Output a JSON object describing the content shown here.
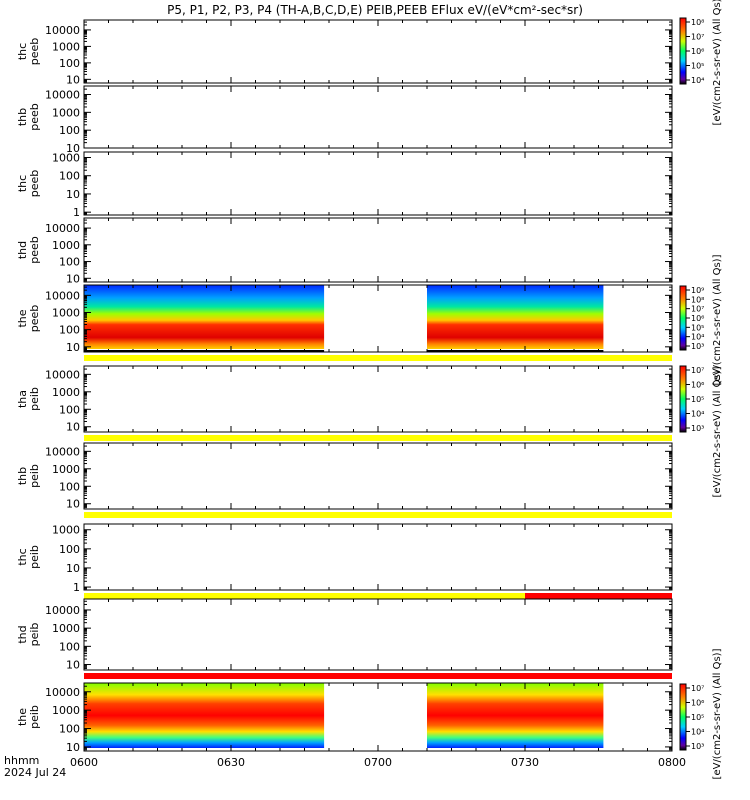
{
  "title": "P5, P1, P2, P3, P4 (TH-A,B,C,D,E) PEIB,PEEB EFlux eV/(eV*cm²-sec*sr)",
  "footer": {
    "time_label": "hhmm",
    "date_label": "2024 Jul 24"
  },
  "colorbars": [
    {
      "label": "[eV/(cm2-s-sr-eV) (All Qs)]",
      "ticks": [
        "10⁸",
        "10⁷",
        "10⁶",
        "10⁵",
        "10⁴"
      ]
    },
    {
      "label": "[eV/(cm2-s-sr-eV) (All Qs)]",
      "ticks": [
        "10⁹",
        "10⁸",
        "10⁷",
        "10⁶",
        "10⁵",
        "10⁴",
        "10³"
      ]
    },
    {
      "label": "[eV/(cm2-s-sr-eV) (All Qs)]",
      "ticks": [
        "10⁷",
        "10⁶",
        "10⁵",
        "10⁴",
        "10³"
      ]
    },
    {
      "label": "[eV/(cm2-s-sr-eV) (All Qs)]",
      "ticks": [
        "10⁷",
        "10⁶",
        "10⁵",
        "10⁴",
        "10³"
      ]
    }
  ],
  "colors": {
    "flag_yellow": "#ffff00",
    "flag_red": "#ff0000"
  },
  "chart_data": {
    "type": "heatmap",
    "x_ticks": [
      "0600",
      "0630",
      "0700",
      "0730",
      "0800"
    ],
    "x_range_min": [
      0,
      120
    ],
    "panels": [
      {
        "probe": "thc",
        "product": "peeb",
        "yticks": [
          "10000",
          "1000",
          "100",
          "10"
        ],
        "ylim": [
          6,
          40000
        ],
        "flag": null,
        "data_segments": []
      },
      {
        "probe": "thb",
        "product": "peeb",
        "yticks": [
          "10000",
          "1000",
          "100",
          "10"
        ],
        "ylim": [
          10,
          30000
        ],
        "flag": null,
        "data_segments": []
      },
      {
        "probe": "thc",
        "product": "peeb",
        "yticks": [
          "1000",
          "100",
          "10",
          "1"
        ],
        "ylim": [
          0.7,
          2000
        ],
        "flag": null,
        "data_segments": []
      },
      {
        "probe": "thd",
        "product": "peeb",
        "yticks": [
          "10000",
          "1000",
          "100",
          "10"
        ],
        "ylim": [
          6,
          40000
        ],
        "flag": null,
        "data_segments": []
      },
      {
        "probe": "the",
        "product": "peeb",
        "yticks": [
          "10000",
          "1000",
          "100",
          "10"
        ],
        "ylim": [
          5,
          40000
        ],
        "flag": [
          {
            "start_min": 0,
            "end_min": 120,
            "color": "yellow"
          }
        ],
        "data_segments": [
          {
            "start_min": 0,
            "end_min": 49
          },
          {
            "start_min": 70,
            "end_min": 106
          }
        ]
      },
      {
        "probe": "tha",
        "product": "peib",
        "yticks": [
          "10000",
          "1000",
          "100",
          "10"
        ],
        "ylim": [
          5,
          30000
        ],
        "flag": [
          {
            "start_min": 0,
            "end_min": 120,
            "color": "yellow"
          }
        ],
        "data_segments": []
      },
      {
        "probe": "thb",
        "product": "peib",
        "yticks": [
          "10000",
          "1000",
          "100",
          "10"
        ],
        "ylim": [
          5,
          30000
        ],
        "flag": [
          {
            "start_min": 0,
            "end_min": 120,
            "color": "yellow"
          }
        ],
        "data_segments": []
      },
      {
        "probe": "thc",
        "product": "peib",
        "yticks": [
          "1000",
          "100",
          "10",
          "1"
        ],
        "ylim": [
          0.7,
          2000
        ],
        "flag": [
          {
            "start_min": 0,
            "end_min": 90,
            "color": "yellow"
          },
          {
            "start_min": 90,
            "end_min": 120,
            "color": "red"
          }
        ],
        "data_segments": []
      },
      {
        "probe": "thd",
        "product": "peib",
        "yticks": [
          "10000",
          "1000",
          "100",
          "10"
        ],
        "ylim": [
          5,
          40000
        ],
        "flag": [
          {
            "start_min": 0,
            "end_min": 120,
            "color": "red"
          }
        ],
        "data_segments": []
      },
      {
        "probe": "the",
        "product": "peib",
        "yticks": [
          "10000",
          "1000",
          "100",
          "10"
        ],
        "ylim": [
          6,
          30000
        ],
        "flag": null,
        "data_segments": [
          {
            "start_min": 0,
            "end_min": 49
          },
          {
            "start_min": 70,
            "end_min": 106
          }
        ]
      }
    ]
  }
}
